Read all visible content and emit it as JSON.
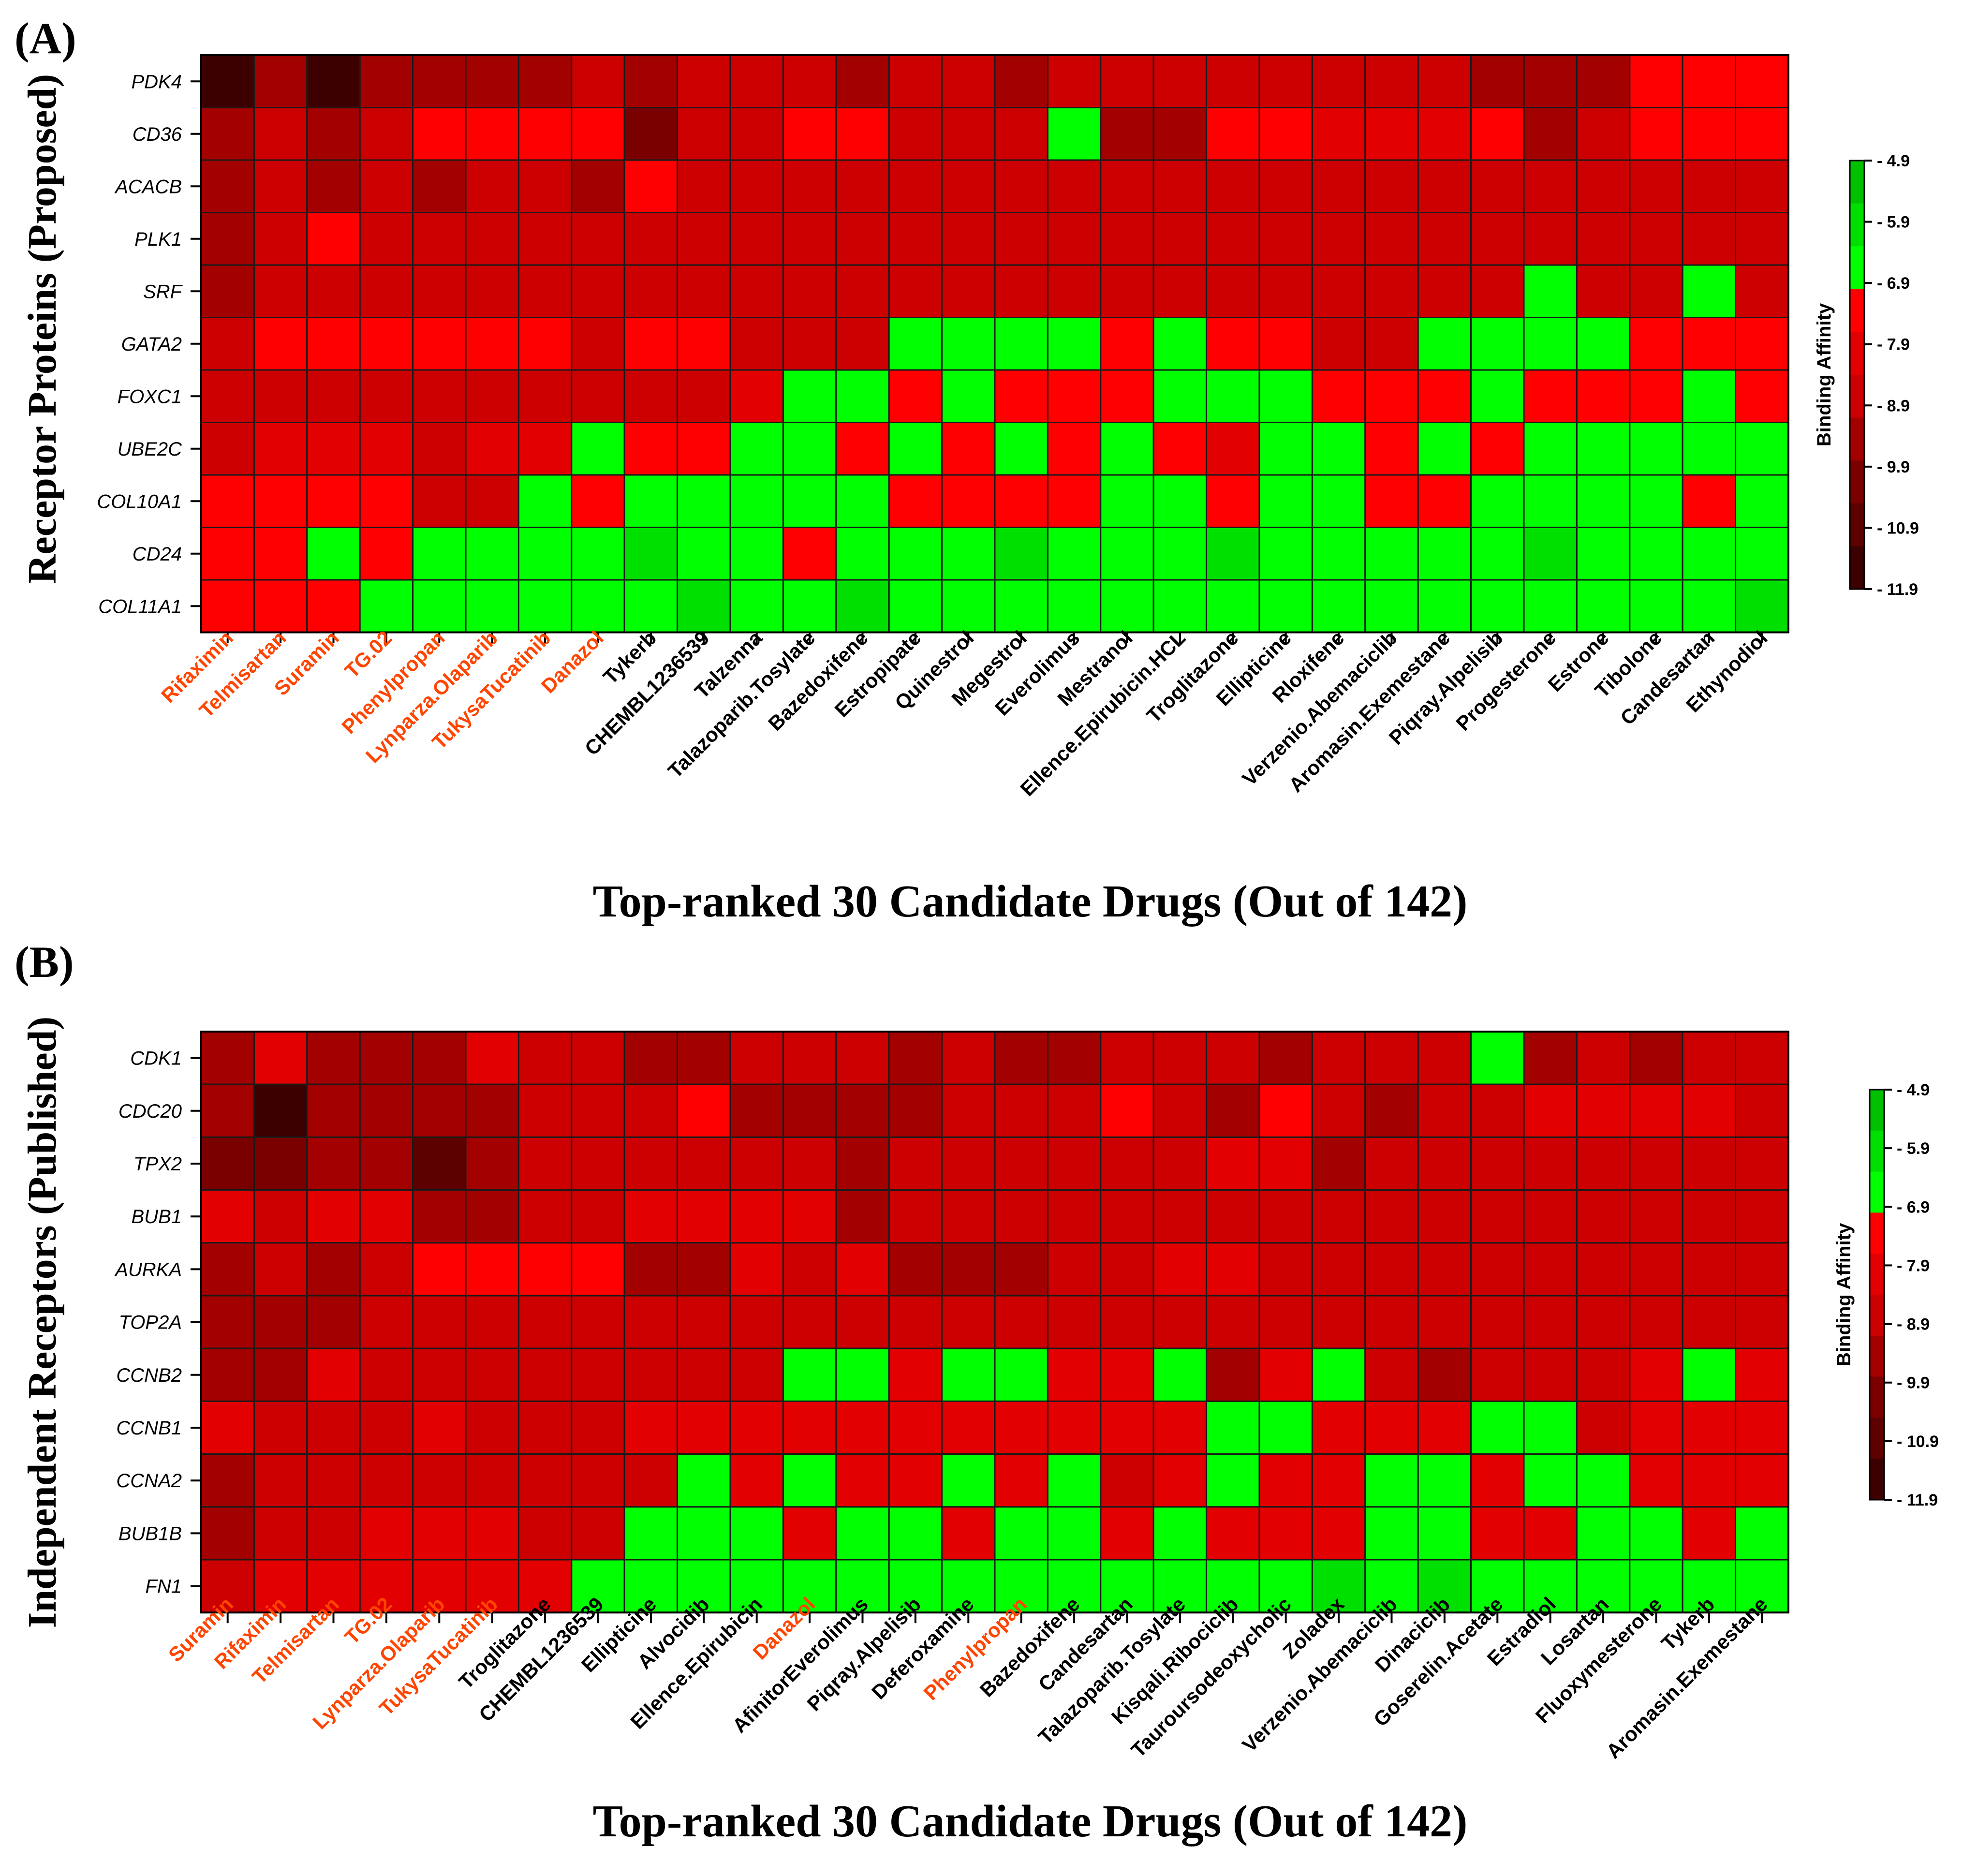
{
  "colors": {
    "highlight_label": "#ff4500",
    "normal_label": "#000000",
    "bin_colors": [
      "#3d0000",
      "#5c0000",
      "#7a0000",
      "#a30000",
      "#cc0000",
      "#e30000",
      "#ff0000",
      "#00ff00",
      "#00e000",
      "#00c000"
    ],
    "bin_edges": [
      11.9,
      10.9,
      9.9,
      8.9,
      7.9,
      6.9,
      5.9,
      4.9
    ]
  },
  "chart_data": [
    {
      "type": "heatmap",
      "panel_label": "(A)",
      "xlabel": "Top-ranked 30 Candidate Drugs (Out of 142)",
      "ylabel": "Receptor Proteins (Proposed)",
      "legend_title": "Binding Affinity",
      "legend_ticks": [
        "4.9",
        "5.9",
        "6.9",
        "7.9",
        "8.9",
        "9.9",
        "10.9",
        "11.9"
      ],
      "rows": [
        "PDK4",
        "CD36",
        "ACACB",
        "PLK1",
        "SRF",
        "GATA2",
        "FOXC1",
        "UBE2C",
        "COL10A1",
        "CD24",
        "COL11A1"
      ],
      "columns": [
        "Rifaximin",
        "Telmisartan",
        "Suramin",
        "TG.02",
        "Phenylpropan",
        "Lynparza.Olaparib",
        "TukysaTucatinib",
        "Danazol",
        "Tykerb",
        "CHEMBL1236539",
        "Talzenna",
        "Talazoparib.Tosylate",
        "Bazedoxifene",
        "Estropipate",
        "Quinestrol",
        "Megestrol",
        "Everolimus",
        "Mestranol",
        "Ellence.Epirubicin.HCL",
        "Troglitazone",
        "Ellipticine",
        "Rloxifene",
        "Verzenio.Abemaciclib",
        "Aromasin.Exemestane",
        "Piqray.Alpelisib",
        "Progesterone",
        "Estrone",
        "Tibolone",
        "Candesartan",
        "Ethynodiol"
      ],
      "highlighted_columns": [
        "Rifaximin",
        "Telmisartan",
        "Suramin",
        "TG.02",
        "Phenylpropan",
        "Lynparza.Olaparib",
        "TukysaTucatinib",
        "Danazol"
      ],
      "values": [
        [
          11.8,
          9.6,
          12.0,
          9.5,
          10.2,
          9.4,
          9.2,
          8.6,
          9.4,
          8.4,
          8.4,
          8.4,
          9.3,
          8.4,
          8.4,
          9.4,
          8.2,
          8.4,
          8.4,
          8.4,
          8.4,
          8.3,
          8.3,
          8.3,
          9.5,
          9.6,
          9.4,
          7.8,
          7.8,
          7.8
        ],
        [
          9.6,
          8.4,
          9.6,
          8.3,
          7.8,
          7.8,
          7.8,
          7.8,
          10.8,
          8.4,
          8.3,
          7.8,
          7.8,
          8.4,
          8.3,
          8.4,
          6.0,
          9.6,
          9.5,
          7.8,
          7.8,
          8.0,
          8.0,
          8.0,
          7.8,
          9.6,
          8.4,
          7.8,
          7.8,
          7.8
        ],
        [
          9.5,
          8.4,
          9.4,
          8.3,
          9.5,
          8.3,
          8.3,
          9.5,
          7.8,
          8.4,
          8.4,
          8.3,
          8.4,
          8.4,
          8.4,
          8.3,
          8.4,
          8.3,
          8.3,
          8.4,
          8.4,
          8.3,
          8.3,
          8.3,
          8.3,
          8.3,
          8.4,
          8.3,
          8.3,
          8.3
        ],
        [
          9.6,
          8.3,
          7.8,
          8.3,
          8.3,
          8.3,
          8.3,
          8.4,
          8.3,
          8.3,
          8.3,
          8.4,
          8.3,
          8.4,
          8.4,
          8.3,
          8.4,
          8.3,
          8.3,
          8.4,
          8.3,
          8.4,
          8.3,
          8.3,
          8.3,
          8.3,
          8.3,
          8.3,
          8.3,
          8.4
        ],
        [
          9.6,
          8.3,
          8.3,
          8.4,
          8.3,
          8.3,
          8.3,
          8.3,
          8.4,
          8.3,
          8.3,
          8.4,
          8.3,
          8.3,
          8.4,
          8.3,
          8.3,
          8.4,
          8.3,
          8.4,
          8.3,
          8.3,
          8.4,
          8.3,
          8.3,
          6.2,
          8.3,
          8.3,
          6.2,
          8.4
        ],
        [
          8.2,
          7.8,
          7.8,
          7.8,
          7.8,
          7.8,
          7.8,
          8.3,
          7.8,
          7.8,
          8.3,
          8.4,
          8.3,
          6.3,
          6.3,
          6.3,
          6.3,
          7.8,
          6.3,
          7.8,
          7.8,
          8.3,
          8.3,
          6.3,
          6.3,
          6.3,
          6.3,
          7.8,
          7.8,
          7.8
        ],
        [
          8.3,
          8.4,
          8.3,
          8.3,
          8.3,
          8.3,
          8.3,
          8.4,
          8.3,
          8.3,
          7.9,
          6.3,
          6.3,
          7.8,
          6.3,
          7.8,
          7.8,
          7.8,
          6.3,
          6.3,
          6.3,
          7.8,
          7.8,
          7.8,
          6.3,
          7.8,
          7.8,
          7.8,
          6.3,
          7.8
        ],
        [
          8.3,
          8.0,
          8.0,
          8.0,
          8.3,
          8.0,
          8.0,
          6.3,
          7.8,
          7.8,
          6.3,
          6.3,
          7.8,
          6.3,
          7.8,
          6.3,
          7.8,
          6.3,
          7.8,
          8.0,
          6.3,
          6.3,
          7.8,
          6.3,
          7.8,
          6.3,
          6.3,
          6.3,
          6.3,
          6.3
        ],
        [
          7.8,
          7.8,
          7.8,
          7.8,
          8.3,
          8.3,
          6.3,
          7.8,
          6.3,
          6.3,
          6.3,
          6.3,
          6.3,
          7.8,
          7.8,
          7.8,
          7.8,
          6.3,
          6.3,
          7.8,
          6.3,
          6.3,
          7.8,
          7.8,
          6.3,
          6.3,
          6.3,
          6.3,
          7.8,
          6.3
        ],
        [
          7.8,
          7.8,
          6.3,
          7.8,
          6.3,
          6.3,
          6.3,
          6.3,
          5.5,
          6.3,
          6.3,
          7.8,
          6.3,
          6.3,
          6.3,
          5.5,
          6.3,
          6.3,
          6.3,
          5.5,
          6.3,
          6.3,
          6.3,
          6.3,
          6.3,
          5.5,
          6.3,
          6.3,
          6.3,
          6.3
        ],
        [
          7.8,
          7.8,
          7.8,
          6.3,
          6.3,
          6.3,
          6.3,
          6.3,
          6.3,
          5.5,
          6.3,
          6.3,
          5.5,
          6.3,
          6.3,
          6.3,
          6.3,
          6.3,
          6.3,
          6.3,
          6.3,
          6.3,
          6.3,
          6.3,
          6.3,
          6.3,
          6.3,
          6.3,
          6.3,
          5.5
        ]
      ]
    },
    {
      "type": "heatmap",
      "panel_label": "(B)",
      "xlabel": "Top-ranked 30 Candidate Drugs (Out of 142)",
      "ylabel": "Independent Receptors (Published)",
      "legend_title": "Binding Affinity",
      "legend_ticks": [
        "4.9",
        "5.9",
        "6.9",
        "7.9",
        "8.9",
        "9.9",
        "10.9",
        "11.9"
      ],
      "rows": [
        "CDK1",
        "CDC20",
        "TPX2",
        "BUB1",
        "AURKA",
        "TOP2A",
        "CCNB2",
        "CCNB1",
        "CCNA2",
        "BUB1B",
        "FN1"
      ],
      "columns": [
        "Suramin",
        "Rifaximin",
        "Telmisartan",
        "TG.02",
        "Lynparza.Olaparib",
        "TukysaTucatinib",
        "Troglitazone",
        "CHEMBL1236539",
        "Ellipticine",
        "Alvocidib",
        "Ellence.Epirubicin",
        "Danazol",
        "AfinitorEverolimus",
        "Piqray.Alpelisib",
        "Deferoxamine",
        "Phenylpropan",
        "Bazedoxifene",
        "Candesartan",
        "Talazoparib.Tosylate",
        "Kisqali.Ribociclib",
        "Tauroursodeoxycholic",
        "Zoladex",
        "Verzenio.Abemaciclib",
        "Dinaciclib",
        "Goserelin.Acetate",
        "Estradiol",
        "Losartan",
        "Fluoxymesterone",
        "Tykerb",
        "Aromasin.Exemestane"
      ],
      "highlighted_columns": [
        "Suramin",
        "Rifaximin",
        "Telmisartan",
        "TG.02",
        "Lynparza.Olaparib",
        "TukysaTucatinib",
        "Danazol",
        "Phenylpropan"
      ],
      "values": [
        [
          9.6,
          7.9,
          9.5,
          9.6,
          9.5,
          7.9,
          8.3,
          8.3,
          9.4,
          9.5,
          8.3,
          8.3,
          8.3,
          9.4,
          8.3,
          9.4,
          9.6,
          8.3,
          8.3,
          8.3,
          9.4,
          8.3,
          8.3,
          8.3,
          6.3,
          9.5,
          8.3,
          9.5,
          8.3,
          8.3
        ],
        [
          9.6,
          11.8,
          9.6,
          9.8,
          9.6,
          9.4,
          8.3,
          8.3,
          8.3,
          7.8,
          9.5,
          9.5,
          9.6,
          9.5,
          8.3,
          8.3,
          8.3,
          7.8,
          8.3,
          9.5,
          7.8,
          8.3,
          9.5,
          8.3,
          8.3,
          8.0,
          8.0,
          8.0,
          8.0,
          8.3
        ],
        [
          10.6,
          10.8,
          9.6,
          9.6,
          10.9,
          9.5,
          8.3,
          8.3,
          8.3,
          8.3,
          8.3,
          8.3,
          9.5,
          8.3,
          8.3,
          8.3,
          8.3,
          8.3,
          8.3,
          8.0,
          8.0,
          9.6,
          8.3,
          8.3,
          8.3,
          8.3,
          8.3,
          8.3,
          8.3,
          8.3
        ],
        [
          8.0,
          8.3,
          8.0,
          8.0,
          9.6,
          9.6,
          8.3,
          8.3,
          8.0,
          8.0,
          8.0,
          8.0,
          9.6,
          8.3,
          8.3,
          8.3,
          8.3,
          8.3,
          8.3,
          8.3,
          8.3,
          8.3,
          8.3,
          8.3,
          8.3,
          8.3,
          8.3,
          8.3,
          8.3,
          8.3
        ],
        [
          9.6,
          8.3,
          9.6,
          8.3,
          7.8,
          7.8,
          7.8,
          7.8,
          9.6,
          9.8,
          8.0,
          8.3,
          8.0,
          9.6,
          9.6,
          9.8,
          8.3,
          8.3,
          8.0,
          8.0,
          8.3,
          8.3,
          8.3,
          8.3,
          8.3,
          8.3,
          8.3,
          8.3,
          8.3,
          8.3
        ],
        [
          9.6,
          9.6,
          9.6,
          8.3,
          8.3,
          8.3,
          8.3,
          8.3,
          8.3,
          8.3,
          8.3,
          8.3,
          8.3,
          8.3,
          8.3,
          8.3,
          8.4,
          8.3,
          8.3,
          8.4,
          8.3,
          8.3,
          8.3,
          8.3,
          8.3,
          8.3,
          8.3,
          8.3,
          8.3,
          8.3
        ],
        [
          9.6,
          9.6,
          7.9,
          8.3,
          8.3,
          8.3,
          8.3,
          8.3,
          8.3,
          8.3,
          8.4,
          6.3,
          6.3,
          8.0,
          6.3,
          6.3,
          8.0,
          8.0,
          6.3,
          9.6,
          8.0,
          6.3,
          8.3,
          9.6,
          8.3,
          8.3,
          8.3,
          8.0,
          6.3,
          8.0
        ],
        [
          7.9,
          8.3,
          8.3,
          8.3,
          8.0,
          8.3,
          8.3,
          8.3,
          8.0,
          8.0,
          8.0,
          8.0,
          8.0,
          8.0,
          8.0,
          8.0,
          8.0,
          8.0,
          8.0,
          6.3,
          6.3,
          8.0,
          8.0,
          8.0,
          6.3,
          6.3,
          8.3,
          8.0,
          8.0,
          8.0
        ],
        [
          9.6,
          8.3,
          8.3,
          8.3,
          8.3,
          8.3,
          8.3,
          8.3,
          8.3,
          6.3,
          8.0,
          6.3,
          8.0,
          8.0,
          6.3,
          8.0,
          6.3,
          8.3,
          8.0,
          6.3,
          8.0,
          8.0,
          6.3,
          6.3,
          8.0,
          6.3,
          6.3,
          8.0,
          8.0,
          8.0
        ],
        [
          9.6,
          8.3,
          8.3,
          8.0,
          8.0,
          8.0,
          8.3,
          8.3,
          6.3,
          6.3,
          6.3,
          8.0,
          6.3,
          6.3,
          8.0,
          6.3,
          6.3,
          8.0,
          6.3,
          8.0,
          8.0,
          8.0,
          6.3,
          6.3,
          8.0,
          8.0,
          6.3,
          6.3,
          8.0,
          6.3
        ],
        [
          8.3,
          8.0,
          8.0,
          8.0,
          8.0,
          8.0,
          8.0,
          6.3,
          6.3,
          6.3,
          6.3,
          6.3,
          6.3,
          6.3,
          6.3,
          6.3,
          6.3,
          6.3,
          6.3,
          6.3,
          6.3,
          5.5,
          6.3,
          5.5,
          6.3,
          6.3,
          6.3,
          6.3,
          6.3,
          6.3
        ]
      ]
    }
  ]
}
